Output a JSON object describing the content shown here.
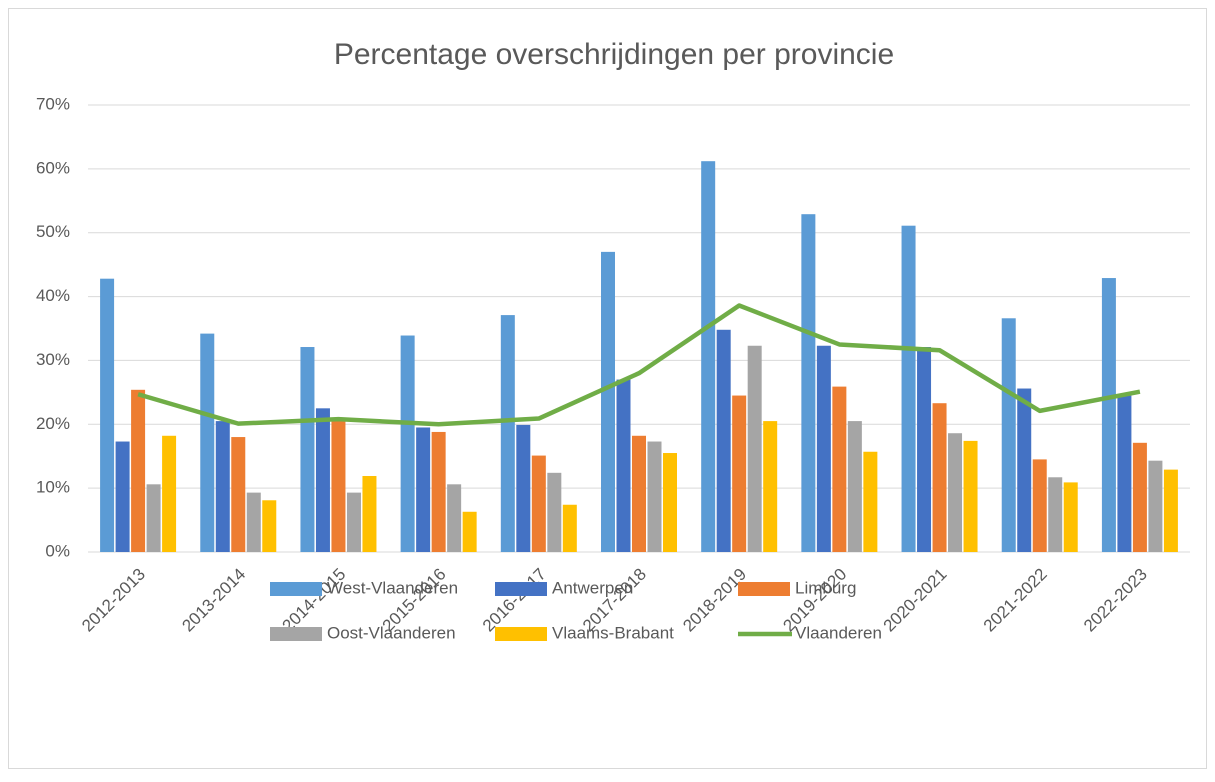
{
  "chart_data": {
    "type": "bar",
    "title": "Percentage overschrijdingen per provincie",
    "categories": [
      "2012-2013",
      "2013-2014",
      "2014-2015",
      "2015-2016",
      "2016-2017",
      "2017-2018",
      "2018-2019",
      "2019-2020",
      "2020-2021",
      "2021-2022",
      "2022-2023"
    ],
    "series": [
      {
        "name": "West-Vlaanderen",
        "color": "#5b9bd5",
        "values": [
          42.8,
          34.2,
          32.1,
          33.9,
          37.1,
          47.0,
          61.2,
          52.9,
          51.1,
          36.6,
          42.9
        ]
      },
      {
        "name": "Antwerpen",
        "color": "#4472c4",
        "values": [
          17.3,
          20.5,
          22.5,
          19.5,
          19.9,
          27.0,
          34.8,
          32.3,
          32.1,
          25.6,
          24.5
        ]
      },
      {
        "name": "Limburg",
        "color": "#ed7d31",
        "values": [
          25.4,
          18.0,
          20.5,
          18.8,
          15.1,
          18.2,
          24.5,
          25.9,
          23.3,
          14.5,
          17.1
        ]
      },
      {
        "name": "Oost-Vlaanderen",
        "color": "#a5a5a5",
        "values": [
          10.6,
          9.3,
          9.3,
          10.6,
          12.4,
          17.3,
          32.3,
          20.5,
          18.6,
          11.7,
          14.3
        ]
      },
      {
        "name": "Vlaams-Brabant",
        "color": "#ffc000",
        "values": [
          18.2,
          8.1,
          11.9,
          6.3,
          7.4,
          15.5,
          20.5,
          15.7,
          17.4,
          10.9,
          12.9
        ]
      },
      {
        "name": "Vlaanderen",
        "color": "#70ad47",
        "type": "line",
        "values": [
          24.7,
          20.1,
          20.8,
          20.0,
          20.9,
          28.0,
          38.6,
          32.5,
          31.6,
          22.1,
          25.1
        ]
      }
    ],
    "ylim": [
      0,
      70
    ],
    "yticks": [
      {
        "value": 0,
        "label": "0%"
      },
      {
        "value": 10,
        "label": "10%"
      },
      {
        "value": 20,
        "label": "20%"
      },
      {
        "value": 30,
        "label": "30%"
      },
      {
        "value": 40,
        "label": "40%"
      },
      {
        "value": 50,
        "label": "50%"
      },
      {
        "value": 60,
        "label": "60%"
      },
      {
        "value": 70,
        "label": "70%"
      }
    ],
    "grid": true,
    "legend": "bottom"
  }
}
